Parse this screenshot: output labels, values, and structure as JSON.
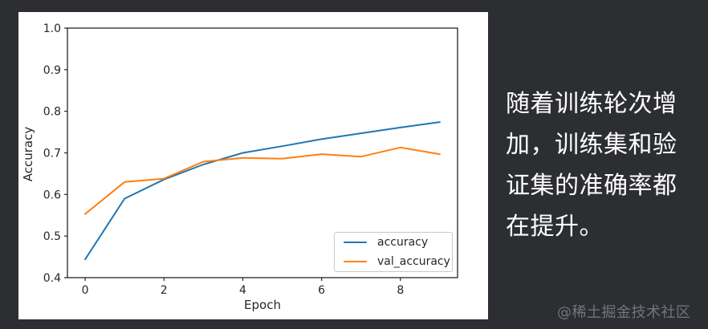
{
  "page": {
    "background_color": "#2c2e32",
    "panel_color": "#ffffff"
  },
  "chart_data": {
    "type": "line",
    "x": [
      0,
      1,
      2,
      3,
      4,
      5,
      6,
      7,
      8,
      9
    ],
    "series": [
      {
        "name": "accuracy",
        "color": "#1f77b4",
        "values": [
          0.444,
          0.59,
          0.636,
          0.672,
          0.7,
          0.716,
          0.733,
          0.747,
          0.761,
          0.774
        ]
      },
      {
        "name": "val_accuracy",
        "color": "#ff7f0e",
        "values": [
          0.553,
          0.63,
          0.638,
          0.679,
          0.688,
          0.686,
          0.697,
          0.691,
          0.713,
          0.697
        ]
      }
    ],
    "title": "",
    "xlabel": "Epoch",
    "ylabel": "Accuracy",
    "xlim": [
      -0.45,
      9.45
    ],
    "ylim": [
      0.4,
      1.0
    ],
    "xticks": [
      0,
      2,
      4,
      6,
      8
    ],
    "yticks": [
      0.4,
      0.5,
      0.6,
      0.7,
      0.8,
      0.9,
      1.0
    ],
    "grid": false,
    "legend": {
      "position": "lower right",
      "entries": [
        "accuracy",
        "val_accuracy"
      ]
    },
    "axis_color": "#262626",
    "tick_label_color": "#262626"
  },
  "annotation": {
    "lines": [
      "随着训练轮次增",
      "加，训练集和验",
      "证集的准确率都",
      "在提升。"
    ]
  },
  "watermark": {
    "text": "@稀土掘金技术社区"
  }
}
